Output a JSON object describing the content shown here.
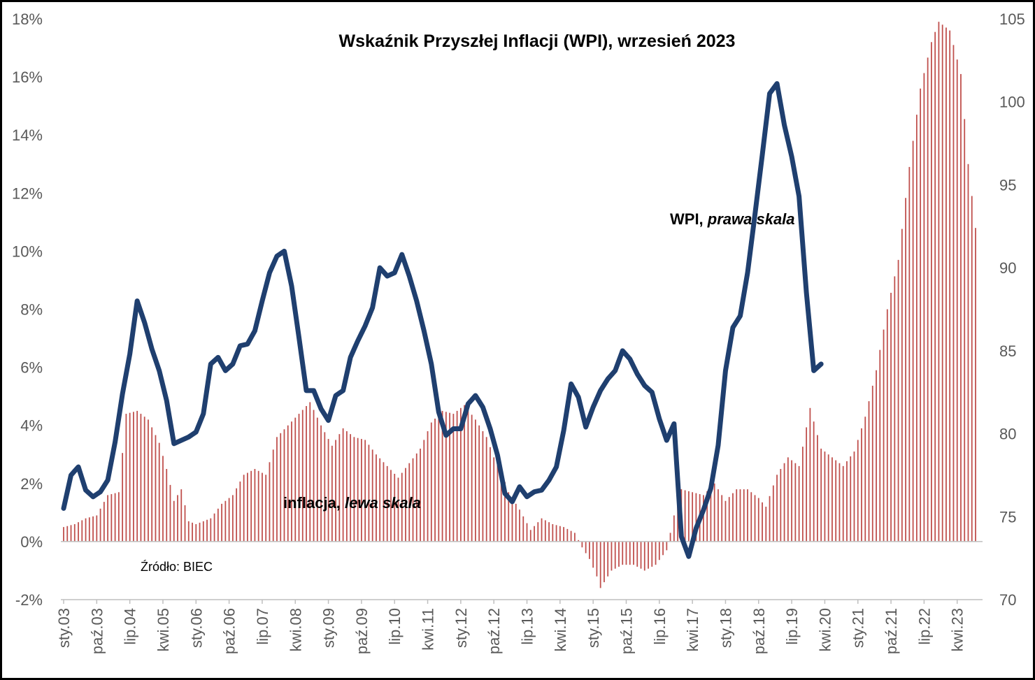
{
  "chart_data": {
    "type": "bar+line",
    "title": "Wskaźnik Przyszłej Inflacji (WPI), wrzesień 2023",
    "source": "Źródło: BIEC",
    "left_axis": {
      "ylim": [
        -2,
        18
      ],
      "ticks": [
        -2,
        0,
        2,
        4,
        6,
        8,
        10,
        12,
        14,
        16,
        18
      ],
      "tick_labels": [
        "-2%",
        "0%",
        "2%",
        "4%",
        "6%",
        "8%",
        "10%",
        "12%",
        "14%",
        "16%",
        "18%"
      ]
    },
    "right_axis": {
      "ylim": [
        70,
        105
      ],
      "ticks": [
        70,
        75,
        80,
        85,
        90,
        95,
        100,
        105
      ],
      "tick_labels": [
        "70",
        "75",
        "80",
        "85",
        "90",
        "95",
        "100",
        "105"
      ]
    },
    "x_axis": {
      "start": "2003-01",
      "months": 249,
      "tick_labels": [
        "sty.03",
        "paź.03",
        "lip.04",
        "kwi.05",
        "sty.06",
        "paź.06",
        "lip.07",
        "kwi.08",
        "sty.09",
        "paź.09",
        "lip.10",
        "kwi.11",
        "sty.12",
        "paź.12",
        "lip.13",
        "kwi.14",
        "sty.15",
        "paź.15",
        "lip.16",
        "kwi.17",
        "sty.18",
        "paź.18",
        "lip.19",
        "kwi.20",
        "sty.21",
        "paź.21",
        "lip.22",
        "kwi.23"
      ]
    },
    "annotations": {
      "wpi_label": "WPI, ",
      "wpi_label_italic": "prawa skala",
      "inflation_label": "inflacja, ",
      "inflation_label_italic": "lewa skala"
    },
    "series": [
      {
        "name": "inflacja",
        "axis": "left",
        "kind": "bar",
        "color": "#C0504D",
        "anchors": [
          [
            0,
            0.5
          ],
          [
            3,
            0.6
          ],
          [
            6,
            0.8
          ],
          [
            9,
            0.9
          ],
          [
            12,
            1.6
          ],
          [
            15,
            1.7
          ],
          [
            17,
            4.4
          ],
          [
            20,
            4.5
          ],
          [
            23,
            4.2
          ],
          [
            26,
            3.4
          ],
          [
            28,
            2.5
          ],
          [
            30,
            1.4
          ],
          [
            32,
            1.8
          ],
          [
            34,
            0.7
          ],
          [
            36,
            0.6
          ],
          [
            38,
            0.7
          ],
          [
            40,
            0.8
          ],
          [
            43,
            1.3
          ],
          [
            46,
            1.6
          ],
          [
            49,
            2.3
          ],
          [
            52,
            2.5
          ],
          [
            55,
            2.3
          ],
          [
            58,
            3.6
          ],
          [
            61,
            4.0
          ],
          [
            64,
            4.4
          ],
          [
            67,
            4.8
          ],
          [
            70,
            4.0
          ],
          [
            73,
            3.3
          ],
          [
            76,
            3.9
          ],
          [
            79,
            3.6
          ],
          [
            82,
            3.5
          ],
          [
            85,
            3.0
          ],
          [
            88,
            2.6
          ],
          [
            91,
            2.2
          ],
          [
            94,
            2.7
          ],
          [
            97,
            3.2
          ],
          [
            100,
            4.1
          ],
          [
            103,
            4.5
          ],
          [
            106,
            4.4
          ],
          [
            109,
            4.7
          ],
          [
            112,
            4.2
          ],
          [
            115,
            3.6
          ],
          [
            117,
            2.9
          ],
          [
            119,
            2.4
          ],
          [
            121,
            1.7
          ],
          [
            124,
            1.1
          ],
          [
            127,
            0.4
          ],
          [
            130,
            0.8
          ],
          [
            133,
            0.6
          ],
          [
            136,
            0.5
          ],
          [
            139,
            0.3
          ],
          [
            141,
            -0.2
          ],
          [
            143,
            -0.6
          ],
          [
            145,
            -1.2
          ],
          [
            146,
            -1.6
          ],
          [
            149,
            -1.0
          ],
          [
            152,
            -0.8
          ],
          [
            155,
            -0.8
          ],
          [
            158,
            -1.0
          ],
          [
            161,
            -0.8
          ],
          [
            164,
            -0.3
          ],
          [
            166,
            0.9
          ],
          [
            168,
            1.8
          ],
          [
            171,
            1.7
          ],
          [
            174,
            1.6
          ],
          [
            177,
            2.0
          ],
          [
            180,
            1.4
          ],
          [
            183,
            1.8
          ],
          [
            186,
            1.8
          ],
          [
            189,
            1.5
          ],
          [
            191,
            1.2
          ],
          [
            194,
            2.3
          ],
          [
            197,
            2.9
          ],
          [
            200,
            2.6
          ],
          [
            203,
            4.6
          ],
          [
            206,
            3.2
          ],
          [
            209,
            2.9
          ],
          [
            212,
            2.6
          ],
          [
            215,
            3.1
          ],
          [
            218,
            4.3
          ],
          [
            221,
            5.9
          ],
          [
            224,
            8.0
          ],
          [
            227,
            9.7
          ],
          [
            230,
            12.9
          ],
          [
            233,
            15.6
          ],
          [
            236,
            17.2
          ],
          [
            238,
            17.9
          ],
          [
            241,
            17.6
          ],
          [
            244,
            16.1
          ],
          [
            246,
            13.0
          ],
          [
            248,
            10.8
          ]
        ]
      },
      {
        "name": "WPI",
        "axis": "right",
        "kind": "line",
        "color": "#1F3F6F",
        "anchors": [
          [
            0,
            75.5
          ],
          [
            2,
            77.5
          ],
          [
            4,
            78.0
          ],
          [
            6,
            76.6
          ],
          [
            8,
            76.2
          ],
          [
            10,
            76.5
          ],
          [
            12,
            77.2
          ],
          [
            14,
            79.5
          ],
          [
            16,
            82.4
          ],
          [
            18,
            84.8
          ],
          [
            20,
            88.0
          ],
          [
            22,
            86.7
          ],
          [
            24,
            85.1
          ],
          [
            26,
            83.8
          ],
          [
            28,
            82.0
          ],
          [
            30,
            79.4
          ],
          [
            32,
            79.6
          ],
          [
            34,
            79.8
          ],
          [
            36,
            80.1
          ],
          [
            38,
            81.2
          ],
          [
            40,
            84.2
          ],
          [
            42,
            84.6
          ],
          [
            44,
            83.8
          ],
          [
            46,
            84.2
          ],
          [
            48,
            85.3
          ],
          [
            50,
            85.4
          ],
          [
            52,
            86.2
          ],
          [
            54,
            88.0
          ],
          [
            56,
            89.7
          ],
          [
            58,
            90.7
          ],
          [
            60,
            91.0
          ],
          [
            62,
            88.9
          ],
          [
            64,
            85.8
          ],
          [
            66,
            82.6
          ],
          [
            68,
            82.6
          ],
          [
            70,
            81.5
          ],
          [
            72,
            80.8
          ],
          [
            74,
            82.3
          ],
          [
            76,
            82.6
          ],
          [
            78,
            84.6
          ],
          [
            80,
            85.6
          ],
          [
            82,
            86.5
          ],
          [
            84,
            87.6
          ],
          [
            86,
            90.0
          ],
          [
            88,
            89.5
          ],
          [
            90,
            89.7
          ],
          [
            92,
            90.8
          ],
          [
            94,
            89.5
          ],
          [
            96,
            88.0
          ],
          [
            98,
            86.2
          ],
          [
            100,
            84.2
          ],
          [
            102,
            81.3
          ],
          [
            104,
            79.9
          ],
          [
            106,
            80.3
          ],
          [
            108,
            80.3
          ],
          [
            110,
            81.8
          ],
          [
            112,
            82.3
          ],
          [
            114,
            81.6
          ],
          [
            116,
            80.3
          ],
          [
            118,
            78.7
          ],
          [
            120,
            76.4
          ],
          [
            122,
            75.9
          ],
          [
            124,
            76.8
          ],
          [
            126,
            76.2
          ],
          [
            128,
            76.5
          ],
          [
            130,
            76.6
          ],
          [
            132,
            77.2
          ],
          [
            134,
            78.0
          ],
          [
            136,
            80.2
          ],
          [
            138,
            83.0
          ],
          [
            140,
            82.2
          ],
          [
            142,
            80.4
          ],
          [
            144,
            81.6
          ],
          [
            146,
            82.6
          ],
          [
            148,
            83.3
          ],
          [
            150,
            83.8
          ],
          [
            152,
            85.0
          ],
          [
            154,
            84.5
          ],
          [
            156,
            83.6
          ],
          [
            158,
            82.9
          ],
          [
            160,
            82.5
          ],
          [
            162,
            80.9
          ],
          [
            164,
            79.6
          ],
          [
            166,
            80.6
          ],
          [
            168,
            73.8
          ],
          [
            170,
            72.6
          ],
          [
            172,
            74.3
          ],
          [
            174,
            75.4
          ],
          [
            176,
            76.7
          ],
          [
            178,
            79.3
          ],
          [
            180,
            83.8
          ],
          [
            182,
            86.4
          ],
          [
            184,
            87.1
          ],
          [
            186,
            89.7
          ],
          [
            188,
            93.2
          ],
          [
            190,
            96.8
          ],
          [
            192,
            100.5
          ],
          [
            194,
            101.1
          ],
          [
            196,
            98.6
          ],
          [
            198,
            96.7
          ],
          [
            200,
            94.3
          ],
          [
            202,
            88.5
          ],
          [
            204,
            83.8
          ],
          [
            206,
            84.2
          ]
        ]
      }
    ]
  }
}
